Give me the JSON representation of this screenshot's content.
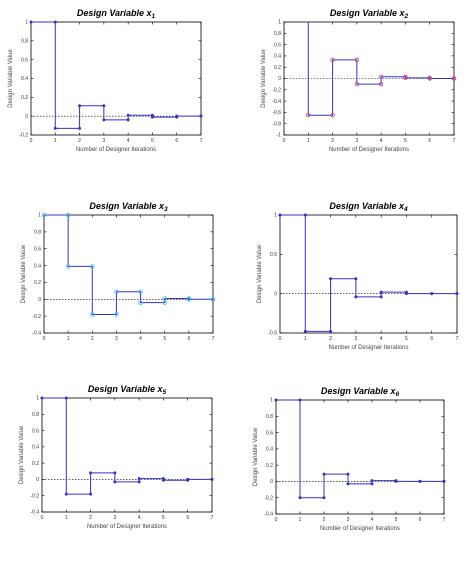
{
  "figure": {
    "xlabel": "Number of Designer Iterations",
    "ylabel": "Design Variable Value"
  },
  "chart_data": [
    {
      "type": "line",
      "title": "Design Variable x1",
      "title_main": "Design Variable x",
      "title_sub": "1",
      "xlabel": "Number of Designer Iterations",
      "ylabel": "Design Variable Value",
      "step": true,
      "x": [
        0,
        1,
        2,
        3,
        4,
        5,
        6,
        7
      ],
      "values": [
        1.0,
        -0.13,
        0.11,
        -0.04,
        0.01,
        -0.01,
        0.0,
        0.0
      ],
      "xlim": [
        0,
        7
      ],
      "ylim": [
        -0.2,
        1.0
      ],
      "xticks": [
        "0",
        "1",
        "2",
        "3",
        "4",
        "5",
        "6",
        "7"
      ],
      "yticks": [
        "-0.2",
        "0",
        "0.2",
        "0.4",
        "0.6",
        "0.8",
        "1"
      ],
      "marker_color": "#3333cc",
      "line_color": "#3333cc",
      "zero_line": true
    },
    {
      "type": "line",
      "title": "Design Variable x2",
      "title_main": "Design Variable x",
      "title_sub": "2",
      "xlabel": "Number of Designer Iterations",
      "ylabel": "Design Variable Value",
      "step": true,
      "x": [
        1,
        2,
        3,
        4,
        5,
        6,
        7
      ],
      "values": [
        -0.65,
        0.33,
        -0.1,
        0.03,
        0.01,
        0.0,
        0.0
      ],
      "start_value": 1.0,
      "xlim": [
        0,
        7
      ],
      "ylim": [
        -1.0,
        1.0
      ],
      "xticks": [
        "0",
        "1",
        "2",
        "3",
        "4",
        "5",
        "6",
        "7"
      ],
      "yticks": [
        "-1",
        "-0.8",
        "-0.6",
        "-0.4",
        "-0.2",
        "0",
        "0.2",
        "0.4",
        "0.6",
        "0.8",
        "1"
      ],
      "marker_color": "#cc4477",
      "line_color": "#3333cc",
      "zero_line": true
    },
    {
      "type": "line",
      "title": "Design Variable x3",
      "title_main": "Design Variable x",
      "title_sub": "3",
      "xlabel": "",
      "ylabel": "Design Variable Value",
      "step": true,
      "x": [
        0,
        1,
        2,
        3,
        4,
        5,
        6,
        7
      ],
      "values": [
        1.0,
        0.39,
        -0.18,
        0.09,
        -0.04,
        0.01,
        0.0,
        0.0
      ],
      "xlim": [
        0,
        7
      ],
      "ylim": [
        -0.4,
        1.0
      ],
      "xticks": [
        "0",
        "1",
        "2",
        "3",
        "4",
        "5",
        "6",
        "7"
      ],
      "yticks": [
        "-0.4",
        "-0.2",
        "0",
        "0.2",
        "0.4",
        "0.6",
        "0.8",
        "1"
      ],
      "marker_color": "#33bbee",
      "line_color": "#3333cc",
      "zero_line": true
    },
    {
      "type": "line",
      "title": "Design Variable x4",
      "title_main": "Design Variable x",
      "title_sub": "4",
      "xlabel": "Number of Designer Iterations",
      "ylabel": "Design Variable Value",
      "step": true,
      "x": [
        0,
        1,
        2,
        3,
        4,
        5,
        6,
        7
      ],
      "values": [
        1.0,
        -0.48,
        0.19,
        -0.04,
        0.02,
        0.0,
        0.0,
        0.0
      ],
      "xlim": [
        0,
        7
      ],
      "ylim": [
        -0.5,
        1.0
      ],
      "xticks": [
        "0",
        "1",
        "2",
        "3",
        "4",
        "5",
        "6",
        "7"
      ],
      "yticks": [
        "-0.5",
        "0",
        "0.5",
        "1"
      ],
      "marker_color": "#3333cc",
      "line_color": "#3333cc",
      "zero_line": true
    },
    {
      "type": "line",
      "title": "Design Variable x5",
      "title_main": "Design Variable x",
      "title_sub": "5",
      "xlabel": "Number of Designer Iterations",
      "ylabel": "Design Variable Value",
      "step": true,
      "x": [
        0,
        1,
        2,
        3,
        4,
        5,
        6,
        7
      ],
      "values": [
        1.0,
        -0.18,
        0.08,
        -0.03,
        0.01,
        -0.01,
        0.0,
        0.0
      ],
      "xlim": [
        0,
        7
      ],
      "ylim": [
        -0.4,
        1.0
      ],
      "xticks": [
        "0",
        "1",
        "2",
        "3",
        "4",
        "5",
        "6",
        "7"
      ],
      "yticks": [
        "-0.4",
        "-0.2",
        "0",
        "0.2",
        "0.4",
        "0.6",
        "0.8",
        "1"
      ],
      "marker_color": "#3333cc",
      "line_color": "#3333cc",
      "zero_line": true
    },
    {
      "type": "line",
      "title": "Design Variable x6",
      "title_main": "Design Variable x",
      "title_sub": "6",
      "xlabel": "Number of Designer Iterations",
      "ylabel": "Design Variable Value",
      "step": true,
      "x": [
        0,
        1,
        2,
        3,
        4,
        5,
        6,
        7
      ],
      "values": [
        1.0,
        -0.2,
        0.09,
        -0.03,
        0.01,
        0.0,
        0.0,
        0.0
      ],
      "xlim": [
        0,
        7
      ],
      "ylim": [
        -0.4,
        1.0
      ],
      "xticks": [
        "0",
        "1",
        "2",
        "3",
        "4",
        "5",
        "6",
        "7"
      ],
      "yticks": [
        "-0.4",
        "-0.2",
        "0",
        "0.2",
        "0.4",
        "0.6",
        "0.8",
        "1"
      ],
      "marker_color": "#3333cc",
      "line_color": "#3333cc",
      "zero_line": true
    }
  ]
}
